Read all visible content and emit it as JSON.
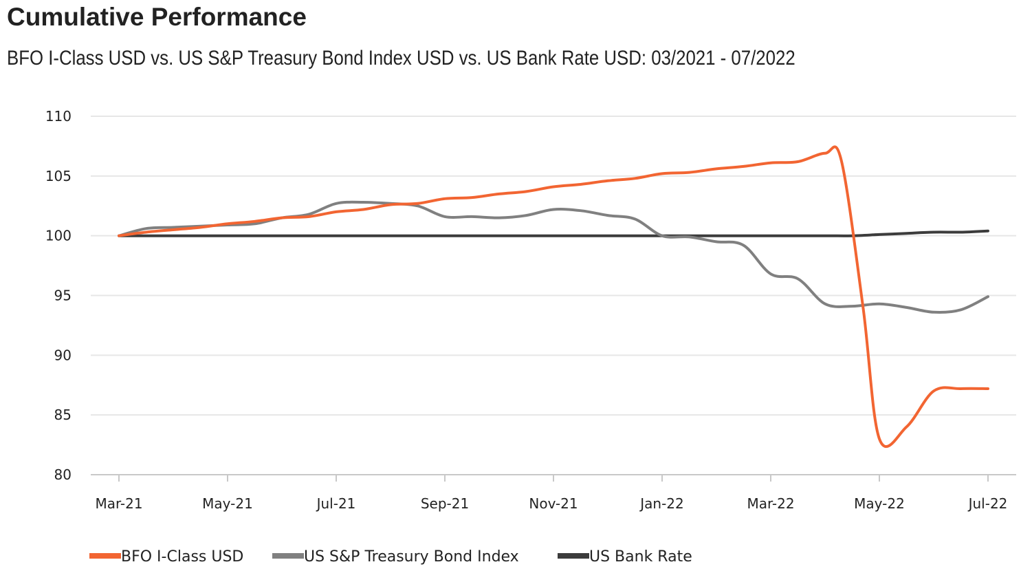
{
  "header": {
    "title": "Cumulative Performance",
    "subtitle": "BFO I-Class USD vs. US S&P Treasury Bond Index USD vs. US Bank Rate USD: 03/2021 - 07/2022"
  },
  "chart_data": {
    "type": "line",
    "title": "Cumulative Performance",
    "subtitle": "BFO I-Class USD vs. US S&P Treasury Bond Index USD vs. US Bank Rate USD: 03/2021 - 07/2022",
    "xlabel": "",
    "ylabel": "",
    "ylim": [
      80,
      110
    ],
    "yticks": [
      80,
      85,
      90,
      95,
      100,
      105,
      110
    ],
    "grid": true,
    "legend_position": "bottom-left",
    "x_index_range": [
      0,
      16
    ],
    "x_ticks": [
      {
        "i": 0,
        "label": "Mar-21"
      },
      {
        "i": 2,
        "label": "May-21"
      },
      {
        "i": 4,
        "label": "Jul-21"
      },
      {
        "i": 6,
        "label": "Sep-21"
      },
      {
        "i": 8,
        "label": "Nov-21"
      },
      {
        "i": 10,
        "label": "Jan-22"
      },
      {
        "i": 12,
        "label": "Mar-22"
      },
      {
        "i": 14,
        "label": "May-22"
      },
      {
        "i": 16,
        "label": "Jul-22"
      }
    ],
    "series": [
      {
        "name": "BFO I-Class USD",
        "color": "#f26532",
        "points": [
          [
            0,
            100
          ],
          [
            0.5,
            100.3
          ],
          [
            1,
            100.5
          ],
          [
            1.5,
            100.7
          ],
          [
            2,
            101.0
          ],
          [
            2.5,
            101.2
          ],
          [
            3,
            101.5
          ],
          [
            3.5,
            101.6
          ],
          [
            4,
            102.0
          ],
          [
            4.5,
            102.2
          ],
          [
            5,
            102.6
          ],
          [
            5.5,
            102.7
          ],
          [
            6,
            103.1
          ],
          [
            6.5,
            103.2
          ],
          [
            7,
            103.5
          ],
          [
            7.5,
            103.7
          ],
          [
            8,
            104.1
          ],
          [
            8.5,
            104.3
          ],
          [
            9,
            104.6
          ],
          [
            9.5,
            104.8
          ],
          [
            10,
            105.2
          ],
          [
            10.5,
            105.3
          ],
          [
            11,
            105.6
          ],
          [
            11.5,
            105.8
          ],
          [
            12,
            106.1
          ],
          [
            12.5,
            106.2
          ],
          [
            13,
            106.9
          ],
          [
            13.3,
            106.3
          ],
          [
            13.7,
            94.0
          ],
          [
            14,
            83.0
          ],
          [
            14.5,
            84.0
          ],
          [
            15,
            87.0
          ],
          [
            15.5,
            87.2
          ],
          [
            16,
            87.2
          ]
        ]
      },
      {
        "name": "US S&P Treasury Bond Index",
        "color": "#808080",
        "points": [
          [
            0,
            100
          ],
          [
            0.5,
            100.6
          ],
          [
            1,
            100.7
          ],
          [
            1.5,
            100.8
          ],
          [
            2,
            100.9
          ],
          [
            2.5,
            101.0
          ],
          [
            3,
            101.5
          ],
          [
            3.5,
            101.8
          ],
          [
            4,
            102.7
          ],
          [
            4.5,
            102.8
          ],
          [
            5,
            102.7
          ],
          [
            5.5,
            102.5
          ],
          [
            6,
            101.6
          ],
          [
            6.5,
            101.6
          ],
          [
            7,
            101.5
          ],
          [
            7.5,
            101.7
          ],
          [
            8,
            102.2
          ],
          [
            8.5,
            102.1
          ],
          [
            9,
            101.7
          ],
          [
            9.5,
            101.4
          ],
          [
            10,
            100.0
          ],
          [
            10.5,
            99.9
          ],
          [
            11,
            99.5
          ],
          [
            11.5,
            99.2
          ],
          [
            12,
            96.8
          ],
          [
            12.5,
            96.4
          ],
          [
            13,
            94.3
          ],
          [
            13.5,
            94.1
          ],
          [
            14,
            94.3
          ],
          [
            14.5,
            94.0
          ],
          [
            15,
            93.6
          ],
          [
            15.5,
            93.8
          ],
          [
            16,
            94.9
          ]
        ]
      },
      {
        "name": "US Bank Rate",
        "color": "#3c3c3c",
        "points": [
          [
            0,
            100
          ],
          [
            1,
            100
          ],
          [
            2,
            100
          ],
          [
            3,
            100
          ],
          [
            4,
            100
          ],
          [
            5,
            100
          ],
          [
            6,
            100
          ],
          [
            7,
            100
          ],
          [
            8,
            100
          ],
          [
            9,
            100
          ],
          [
            10,
            100
          ],
          [
            11,
            100
          ],
          [
            12,
            100
          ],
          [
            13,
            100
          ],
          [
            13.5,
            100
          ],
          [
            14,
            100.1
          ],
          [
            14.5,
            100.2
          ],
          [
            15,
            100.3
          ],
          [
            15.5,
            100.3
          ],
          [
            16,
            100.4
          ]
        ]
      }
    ]
  }
}
